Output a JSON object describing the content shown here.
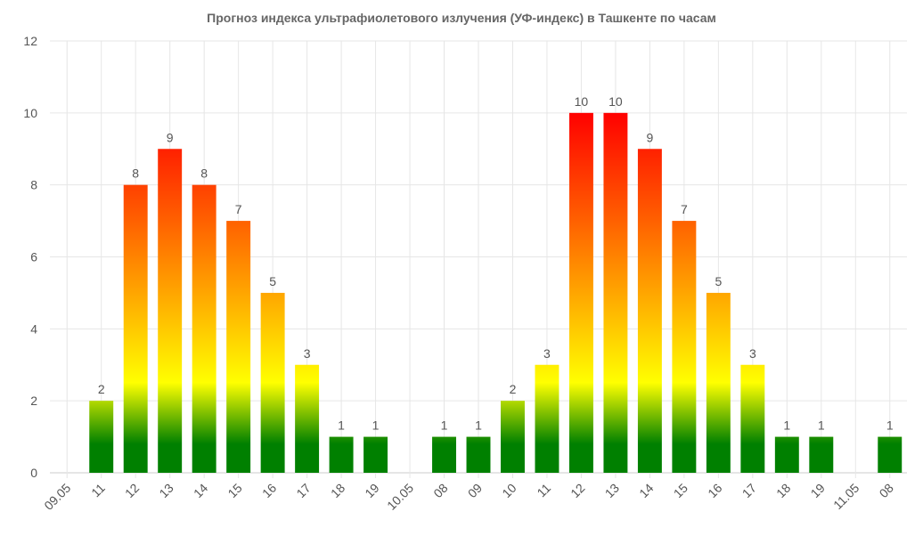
{
  "chart_data": {
    "type": "bar",
    "title": "Прогноз индекса ультрафиолетового излучения (УФ-индекс) в Ташкенте по часам",
    "xlabel": "",
    "ylabel": "",
    "ylim": [
      0,
      12
    ],
    "yticks": [
      0,
      2,
      4,
      6,
      8,
      10,
      12
    ],
    "grid": true,
    "categories": [
      "09.05",
      "11",
      "12",
      "13",
      "14",
      "15",
      "16",
      "17",
      "18",
      "19",
      "10.05",
      "08",
      "09",
      "10",
      "11",
      "12",
      "13",
      "14",
      "15",
      "16",
      "17",
      "18",
      "19",
      "11.05",
      "08"
    ],
    "values": [
      null,
      2,
      8,
      9,
      8,
      7,
      5,
      3,
      1,
      1,
      null,
      1,
      1,
      2,
      3,
      10,
      10,
      9,
      7,
      5,
      3,
      1,
      1,
      null,
      1
    ],
    "colors": {
      "low": "#008000",
      "moderate": "#ffff00",
      "high": "#ff8c00",
      "very_high": "#ff0000"
    }
  }
}
